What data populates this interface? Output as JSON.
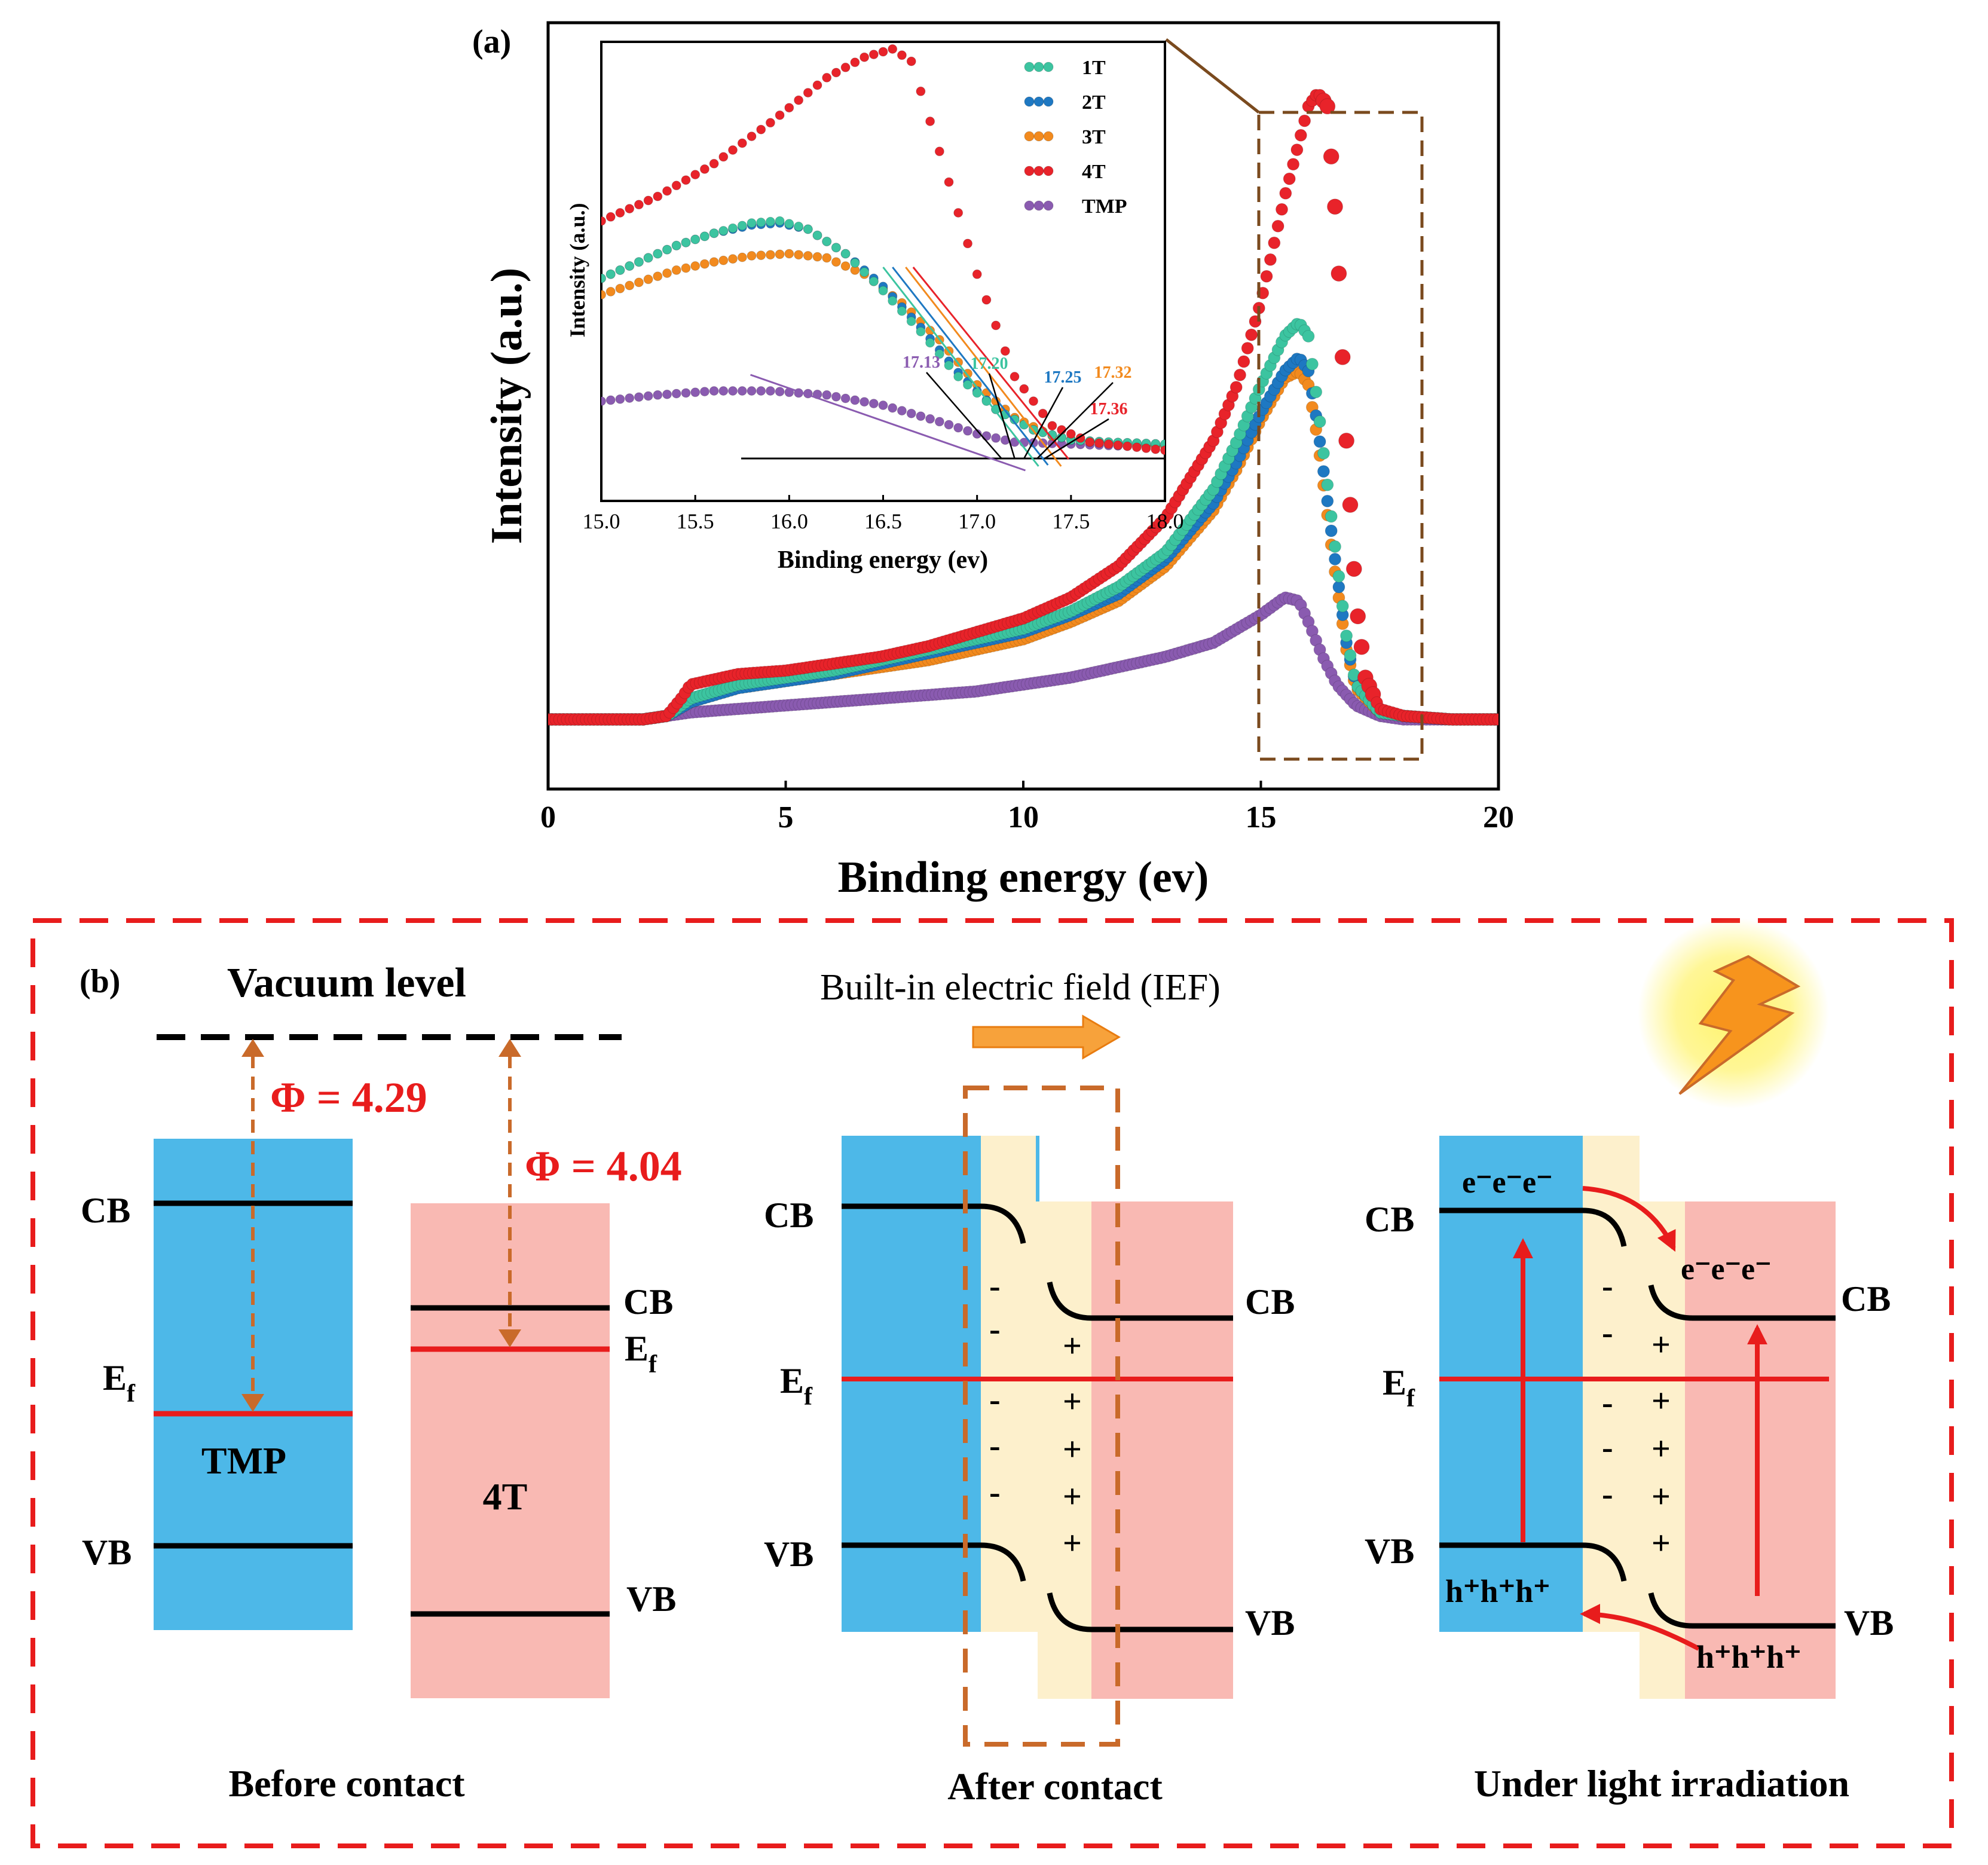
{
  "panel_a_label": "(a)",
  "panel_b_label": "(b)",
  "colors": {
    "1T": "#3cc4a0",
    "2T": "#1e78c2",
    "3T": "#f28a1e",
    "4T": "#e8232a",
    "TMP": "#8a5bb0",
    "tmp_block": "#4db8e8",
    "t4_block": "#f9b9b3",
    "depletion": "#fdf0cc",
    "fermi": "#e81c1c",
    "dashed_box": "#a0522d",
    "arrow": "#c96a2a"
  },
  "chart_data": [
    {
      "id": "main",
      "type": "scatter",
      "xlabel": "Binding energy (ev)",
      "ylabel": "Intensity (a.u.)",
      "xlim": [
        0,
        20
      ],
      "ylim": [
        -0.1,
        1.0
      ],
      "xticks": [
        0,
        5,
        10,
        15,
        20
      ],
      "zoom_box_x": [
        15.0,
        18.4
      ],
      "series": [
        {
          "name": "1T",
          "x": [
            0,
            2,
            2.5,
            3,
            4,
            5,
            6,
            7,
            8,
            9,
            10,
            11,
            12,
            13,
            14,
            14.5,
            15,
            15.5,
            15.8,
            16,
            16.2,
            16.5,
            16.8,
            17,
            17.5,
            18,
            19,
            20
          ],
          "y": [
            0,
            0,
            0.005,
            0.03,
            0.05,
            0.06,
            0.07,
            0.085,
            0.1,
            0.115,
            0.13,
            0.155,
            0.19,
            0.24,
            0.33,
            0.4,
            0.48,
            0.55,
            0.57,
            0.55,
            0.45,
            0.28,
            0.12,
            0.05,
            0.01,
            0.005,
            0,
            0
          ]
        },
        {
          "name": "2T",
          "x": [
            0,
            2,
            2.5,
            3,
            4,
            5,
            6,
            7,
            8,
            9,
            10,
            11,
            12,
            13,
            14,
            14.5,
            15,
            15.5,
            15.8,
            16,
            16.2,
            16.5,
            16.8,
            17,
            17.5,
            18,
            19,
            20
          ],
          "y": [
            0,
            0,
            0.005,
            0.025,
            0.045,
            0.055,
            0.065,
            0.08,
            0.095,
            0.11,
            0.125,
            0.15,
            0.18,
            0.23,
            0.31,
            0.37,
            0.44,
            0.5,
            0.52,
            0.5,
            0.42,
            0.26,
            0.11,
            0.05,
            0.01,
            0.005,
            0,
            0
          ]
        },
        {
          "name": "3T",
          "x": [
            0,
            2,
            2.5,
            3,
            4,
            5,
            6,
            7,
            8,
            9,
            10,
            11,
            12,
            13,
            14,
            14.5,
            15,
            15.5,
            15.8,
            16,
            16.2,
            16.5,
            16.8,
            17,
            17.5,
            18,
            19,
            20
          ],
          "y": [
            0,
            0,
            0.005,
            0.025,
            0.045,
            0.055,
            0.065,
            0.075,
            0.085,
            0.1,
            0.115,
            0.14,
            0.17,
            0.22,
            0.3,
            0.36,
            0.43,
            0.49,
            0.5,
            0.48,
            0.4,
            0.24,
            0.1,
            0.045,
            0.01,
            0.005,
            0,
            0
          ]
        },
        {
          "name": "4T",
          "x": [
            0,
            2,
            2.5,
            2.8,
            3,
            4,
            5,
            6,
            7,
            8,
            9,
            10,
            11,
            12,
            13,
            14,
            14.5,
            15,
            15.5,
            16,
            16.2,
            16.4,
            16.6,
            16.8,
            17,
            17.2,
            17.5,
            18,
            19,
            20
          ],
          "y": [
            0,
            0,
            0.005,
            0.03,
            0.05,
            0.065,
            0.07,
            0.08,
            0.09,
            0.105,
            0.125,
            0.145,
            0.175,
            0.22,
            0.29,
            0.4,
            0.48,
            0.6,
            0.75,
            0.88,
            0.9,
            0.88,
            0.7,
            0.4,
            0.17,
            0.06,
            0.015,
            0.005,
            0,
            0
          ]
        },
        {
          "name": "TMP",
          "x": [
            0,
            2,
            3,
            4,
            5,
            6,
            7,
            8,
            9,
            10,
            11,
            12,
            13,
            14,
            14.5,
            15,
            15.5,
            15.8,
            16,
            16.3,
            16.6,
            17,
            17.5,
            18,
            19,
            20
          ],
          "y": [
            0,
            0,
            0.01,
            0.015,
            0.02,
            0.025,
            0.03,
            0.035,
            0.04,
            0.05,
            0.06,
            0.075,
            0.09,
            0.11,
            0.13,
            0.15,
            0.175,
            0.17,
            0.14,
            0.09,
            0.05,
            0.02,
            0.005,
            0,
            0,
            0
          ]
        }
      ]
    },
    {
      "id": "inset",
      "type": "scatter",
      "xlabel": "Binding energy (ev)",
      "ylabel": "Intensity (a.u.)",
      "xlim": [
        15.0,
        18.0
      ],
      "ylim": [
        0,
        1.0
      ],
      "xticks": [
        15.0,
        15.5,
        16.0,
        16.5,
        17.0,
        17.5,
        18.0
      ],
      "legend": [
        "1T",
        "2T",
        "3T",
        "4T",
        "TMP"
      ],
      "legend_position": "top-right",
      "series": [
        {
          "name": "1T",
          "x": [
            15,
            15.2,
            15.4,
            15.6,
            15.8,
            15.95,
            16.1,
            16.3,
            16.5,
            16.7,
            16.9,
            17.1,
            17.3,
            17.5,
            17.7,
            18
          ],
          "y": [
            0.44,
            0.48,
            0.52,
            0.55,
            0.575,
            0.58,
            0.56,
            0.5,
            0.41,
            0.31,
            0.2,
            0.12,
            0.07,
            0.045,
            0.04,
            0.035
          ]
        },
        {
          "name": "2T",
          "x": [
            15,
            15.2,
            15.4,
            15.6,
            15.8,
            15.95,
            16.1,
            16.3,
            16.5,
            16.7,
            16.9,
            17.1,
            17.3,
            17.5,
            17.7,
            18
          ],
          "y": [
            0.44,
            0.48,
            0.52,
            0.55,
            0.57,
            0.575,
            0.56,
            0.5,
            0.42,
            0.32,
            0.21,
            0.12,
            0.07,
            0.045,
            0.04,
            0.035
          ]
        },
        {
          "name": "3T",
          "x": [
            15,
            15.2,
            15.4,
            15.6,
            15.8,
            16.0,
            16.2,
            16.4,
            16.6,
            16.8,
            17.0,
            17.2,
            17.4,
            17.6,
            17.8,
            18
          ],
          "y": [
            0.4,
            0.43,
            0.46,
            0.48,
            0.495,
            0.5,
            0.49,
            0.45,
            0.38,
            0.29,
            0.18,
            0.1,
            0.055,
            0.04,
            0.035,
            0.03
          ]
        },
        {
          "name": "4T",
          "x": [
            15,
            15.3,
            15.6,
            15.9,
            16.2,
            16.4,
            16.55,
            16.65,
            16.8,
            17.0,
            17.2,
            17.4,
            17.6,
            17.8,
            18
          ],
          "y": [
            0.58,
            0.64,
            0.72,
            0.82,
            0.93,
            0.98,
            1.0,
            0.97,
            0.75,
            0.45,
            0.2,
            0.08,
            0.04,
            0.03,
            0.02
          ]
        },
        {
          "name": "TMP",
          "x": [
            15,
            15.3,
            15.6,
            15.9,
            16.2,
            16.5,
            16.8,
            17.0,
            17.2,
            17.5,
            17.8,
            18
          ],
          "y": [
            0.14,
            0.155,
            0.165,
            0.165,
            0.155,
            0.13,
            0.09,
            0.06,
            0.04,
            0.035,
            0.03,
            0.03
          ]
        }
      ],
      "onset_labels": [
        {
          "text": "17.13",
          "series": "TMP"
        },
        {
          "text": "17.20",
          "series": "1T"
        },
        {
          "text": "17.25",
          "series": "2T"
        },
        {
          "text": "17.32",
          "series": "3T"
        },
        {
          "text": "17.36",
          "series": "4T"
        }
      ]
    }
  ],
  "panel_b": {
    "vacuum_level": "Vacuum level",
    "ief_label": "Built-in electric field (IEF)",
    "phi_tmp": "Φ = 4.29",
    "phi_4t": "Φ = 4.04",
    "cb": "CB",
    "vb": "VB",
    "ef": "E",
    "ef_sub": "f",
    "tmp_name": "TMP",
    "t4_name": "4T",
    "minus": "-",
    "plus": "+",
    "electrons": "e⁻e⁻e⁻",
    "holes": "h⁺h⁺h⁺",
    "caption_before": "Before contact",
    "caption_after": "After contact",
    "caption_light": "Under light irradiation"
  }
}
